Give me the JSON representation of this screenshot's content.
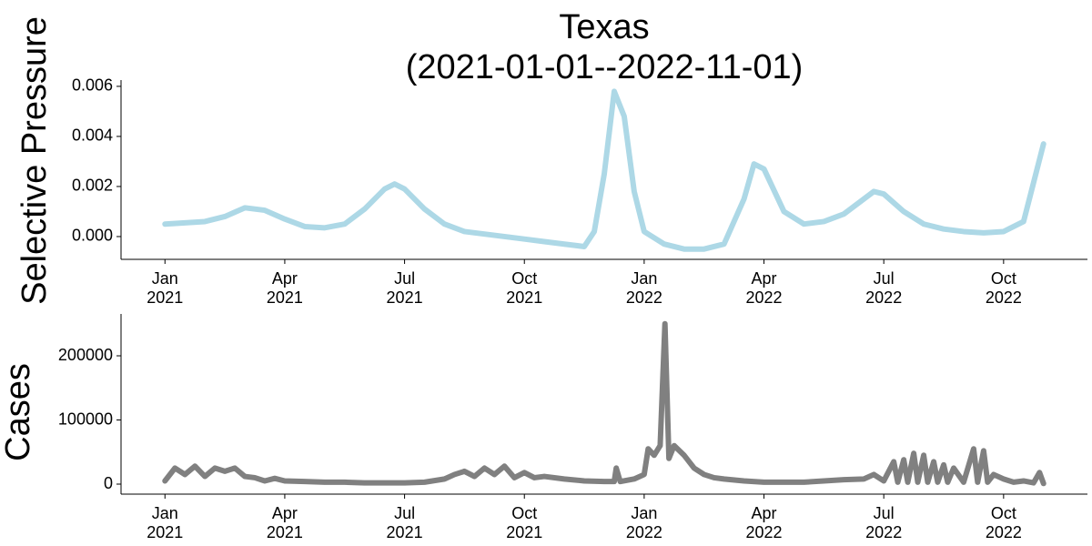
{
  "chart_data": [
    {
      "type": "line",
      "title": "Texas\n(2021-01-01--2022-11-01)",
      "ylabel": "Selective Pressure",
      "color": "#add8e6",
      "x": [
        0,
        0.5,
        1,
        1.5,
        2,
        2.5,
        3,
        3.5,
        4,
        4.5,
        5,
        5.5,
        5.75,
        6,
        6.5,
        7,
        7.5,
        8,
        8.5,
        9,
        9.5,
        10,
        10.5,
        10.75,
        11,
        11.25,
        11.5,
        11.75,
        12,
        12.5,
        13,
        13.5,
        14,
        14.5,
        14.75,
        15,
        15.5,
        16,
        16.5,
        17,
        17.5,
        17.75,
        18,
        18.5,
        19,
        19.5,
        20,
        20.5,
        21,
        21.5,
        22
      ],
      "values": [
        0.0005,
        0.00055,
        0.0006,
        0.0008,
        0.00115,
        0.00105,
        0.0007,
        0.0004,
        0.00035,
        0.0005,
        0.0011,
        0.0019,
        0.0021,
        0.0019,
        0.0011,
        0.0005,
        0.0002,
        0.0001,
        0,
        -0.0001,
        -0.0002,
        -0.0003,
        -0.0004,
        0.0002,
        0.0025,
        0.0058,
        0.0048,
        0.0018,
        0.0002,
        -0.0003,
        -0.0005,
        -0.0005,
        -0.0003,
        0.0015,
        0.0029,
        0.0027,
        0.001,
        0.0005,
        0.0006,
        0.0009,
        0.0015,
        0.0018,
        0.0017,
        0.001,
        0.0005,
        0.0003,
        0.0002,
        0.00015,
        0.0002,
        0.0006,
        0.0037
      ],
      "xlim": [
        -1.1,
        23.1
      ],
      "xticks": [
        {
          "value": 0,
          "label": "Jan\n2021"
        },
        {
          "value": 3,
          "label": "Apr\n2021"
        },
        {
          "value": 6,
          "label": "Jul\n2021"
        },
        {
          "value": 9,
          "label": "Oct\n2021"
        },
        {
          "value": 12,
          "label": "Jan\n2022"
        },
        {
          "value": 15,
          "label": "Apr\n2022"
        },
        {
          "value": 18,
          "label": "Jul\n2022"
        },
        {
          "value": 21,
          "label": "Oct\n2022"
        }
      ],
      "ylim": [
        -0.00091,
        0.00625
      ],
      "yticks": [
        {
          "value": 0,
          "label": "0.000"
        },
        {
          "value": 0.002,
          "label": "0.002"
        },
        {
          "value": 0.004,
          "label": "0.004"
        },
        {
          "value": 0.006,
          "label": "0.006"
        }
      ],
      "grid": false
    },
    {
      "type": "line",
      "ylabel": "Cases",
      "color": "#808080",
      "x": [
        0,
        0.25,
        0.5,
        0.75,
        1,
        1.25,
        1.5,
        1.75,
        2,
        2.25,
        2.5,
        2.75,
        3,
        3.5,
        4,
        4.5,
        5,
        5.5,
        6,
        6.5,
        7,
        7.25,
        7.5,
        7.75,
        8,
        8.25,
        8.5,
        8.75,
        9,
        9.25,
        9.5,
        10,
        10.5,
        11,
        11.25,
        11.3,
        11.4,
        11.75,
        12,
        12.1,
        12.25,
        12.4,
        12.52,
        12.62,
        12.75,
        13,
        13.25,
        13.5,
        13.75,
        14,
        14.5,
        15,
        15.5,
        16,
        16.5,
        17,
        17.5,
        17.75,
        18,
        18.25,
        18.35,
        18.5,
        18.6,
        18.75,
        18.85,
        19,
        19.1,
        19.25,
        19.35,
        19.5,
        19.6,
        19.75,
        20,
        20.25,
        20.35,
        20.5,
        20.6,
        20.75,
        21,
        21.25,
        21.5,
        21.75,
        21.9,
        22
      ],
      "values": [
        5000,
        25000,
        15000,
        28000,
        12000,
        25000,
        20000,
        25000,
        12000,
        10000,
        5000,
        9000,
        5000,
        4000,
        3000,
        3000,
        2000,
        2000,
        2000,
        3000,
        8000,
        15000,
        20000,
        12000,
        25000,
        15000,
        28000,
        10000,
        18000,
        10000,
        12000,
        8000,
        5000,
        4000,
        4000,
        25000,
        4000,
        8000,
        15000,
        55000,
        45000,
        60000,
        250000,
        40000,
        60000,
        45000,
        25000,
        15000,
        10000,
        8000,
        5000,
        3000,
        3000,
        3000,
        5000,
        7000,
        8000,
        15000,
        5000,
        35000,
        3000,
        38000,
        3000,
        48000,
        3000,
        45000,
        3000,
        35000,
        3000,
        30000,
        3000,
        25000,
        3000,
        55000,
        3000,
        52000,
        3000,
        15000,
        8000,
        3000,
        5000,
        2000,
        18000,
        1000
      ],
      "xlim": [
        -1.1,
        23.1
      ],
      "xticks": [
        {
          "value": 0,
          "label": "Jan\n2021"
        },
        {
          "value": 3,
          "label": "Apr\n2021"
        },
        {
          "value": 6,
          "label": "Jul\n2021"
        },
        {
          "value": 9,
          "label": "Oct\n2021"
        },
        {
          "value": 12,
          "label": "Jan\n2022"
        },
        {
          "value": 15,
          "label": "Apr\n2022"
        },
        {
          "value": 18,
          "label": "Jul\n2022"
        },
        {
          "value": 21,
          "label": "Oct\n2022"
        }
      ],
      "ylim": [
        -15600,
        265250
      ],
      "yticks": [
        0,
        100000,
        200000
      ],
      "grid": false
    }
  ]
}
